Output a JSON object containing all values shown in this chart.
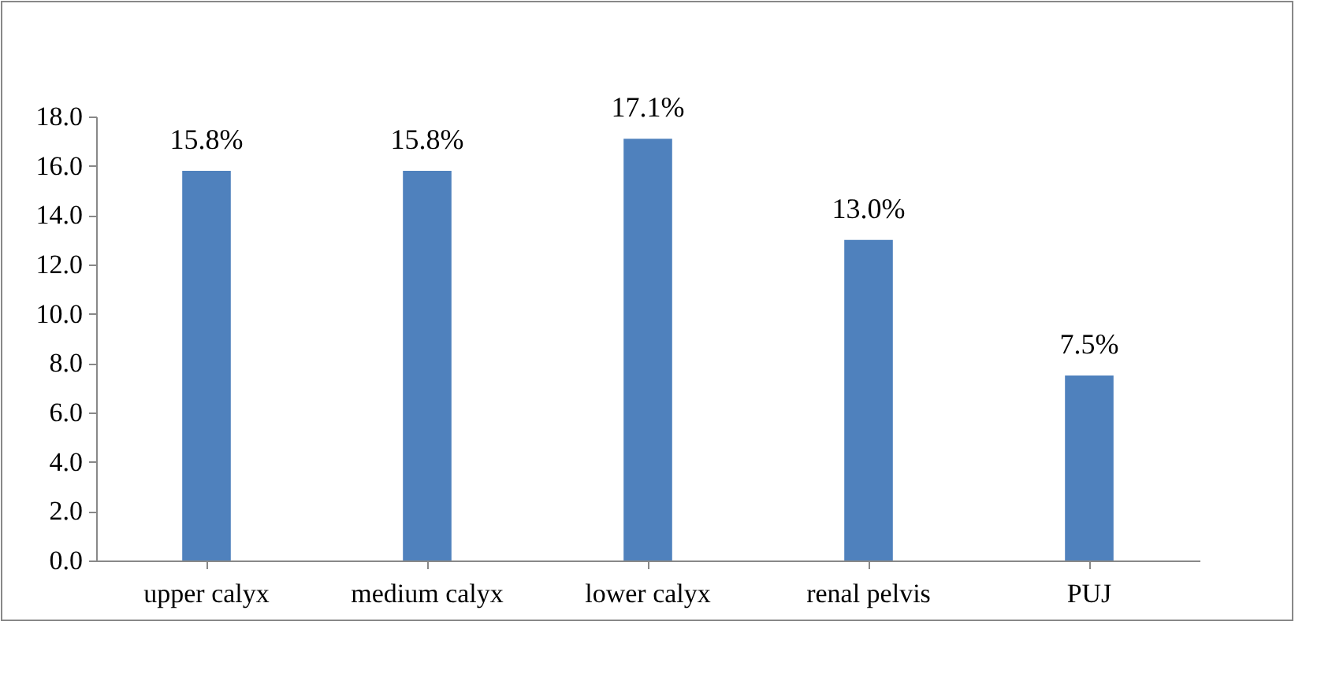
{
  "chart_data": {
    "type": "bar",
    "categories": [
      "upper calyx",
      "medium calyx",
      "lower calyx",
      "renal pelvis",
      "PUJ"
    ],
    "values": [
      15.8,
      15.8,
      17.1,
      13.0,
      7.5
    ],
    "value_labels": [
      "15.8%",
      "15.8%",
      "17.1%",
      "13.0%",
      "7.5%"
    ],
    "color": "#4f81bd",
    "ylim": [
      0,
      18
    ],
    "yticks": [
      {
        "value": 0,
        "label": "0.0"
      },
      {
        "value": 2,
        "label": "2.0"
      },
      {
        "value": 4,
        "label": "4.0"
      },
      {
        "value": 6,
        "label": "6.0"
      },
      {
        "value": 8,
        "label": "8.0"
      },
      {
        "value": 10,
        "label": "10.0"
      },
      {
        "value": 12,
        "label": "12.0"
      },
      {
        "value": 14,
        "label": "14.0"
      },
      {
        "value": 16,
        "label": "16.0"
      },
      {
        "value": 18,
        "label": "18.0"
      }
    ],
    "grid": false
  }
}
